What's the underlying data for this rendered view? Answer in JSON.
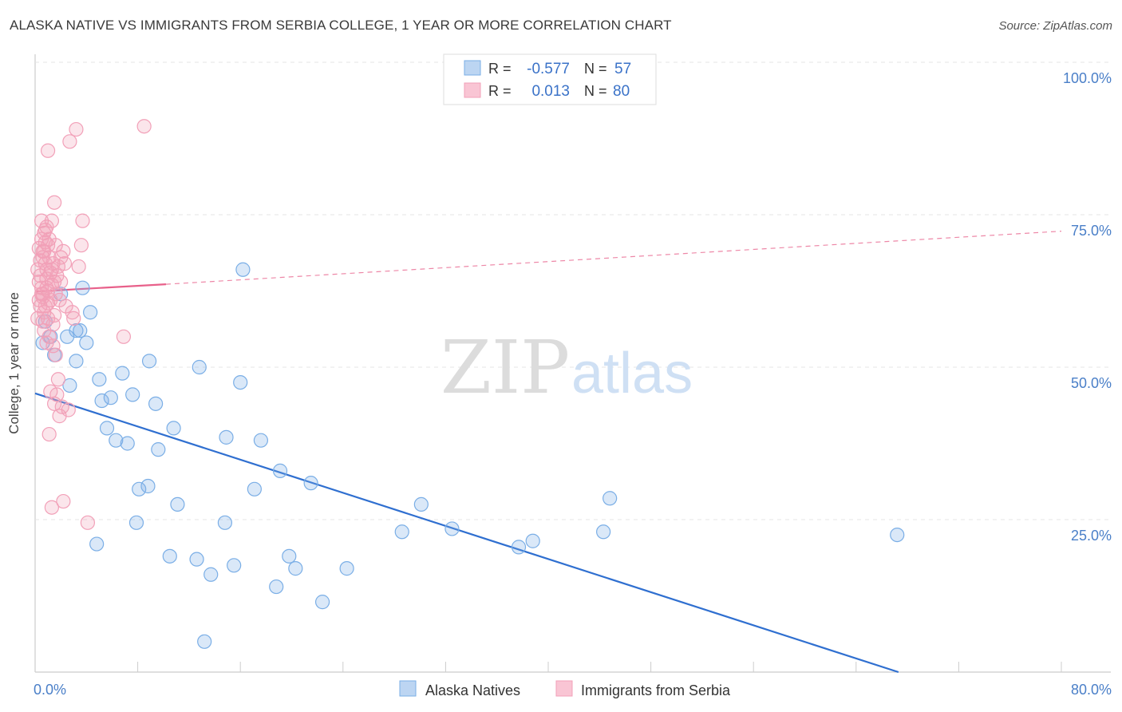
{
  "title": "ALASKA NATIVE VS IMMIGRANTS FROM SERBIA COLLEGE, 1 YEAR OR MORE CORRELATION CHART",
  "source": "Source: ZipAtlas.com",
  "watermark": {
    "zip": "ZIP",
    "atlas": "atlas"
  },
  "chart_data": {
    "type": "scatter",
    "ylabel": "College, 1 year or more",
    "xlabel": "",
    "xlim": [
      0,
      80
    ],
    "ylim": [
      0,
      100
    ],
    "x_tick_labels": [
      "0.0%",
      "80.0%"
    ],
    "y_ticks": [
      {
        "value": 100,
        "label": "100.0%"
      },
      {
        "value": 75,
        "label": "75.0%"
      },
      {
        "value": 50,
        "label": "50.0%"
      },
      {
        "value": 25,
        "label": "25.0%"
      }
    ],
    "legend_stats": [
      {
        "r_label": "R =",
        "r_value": "-0.577",
        "n_label": "N =",
        "n_value": "57"
      },
      {
        "r_label": "R =",
        "r_value": "0.013",
        "n_label": "N =",
        "n_value": "80"
      }
    ],
    "series": [
      {
        "name": "Alaska Natives",
        "color": "#7aaee6",
        "line_color": "#2f6fd0",
        "trend": {
          "x0": 0,
          "y0": 45.7,
          "x1": 67.3,
          "y1": 0,
          "dashed_to": null
        },
        "points": [
          [
            0.8,
            57.5
          ],
          [
            1.2,
            55
          ],
          [
            1.5,
            52
          ],
          [
            2.0,
            62
          ],
          [
            2.5,
            55
          ],
          [
            2.7,
            47
          ],
          [
            3.2,
            56
          ],
          [
            3.5,
            56
          ],
          [
            3.2,
            51
          ],
          [
            4.0,
            54
          ],
          [
            3.7,
            63
          ],
          [
            4.3,
            59
          ],
          [
            5.0,
            48
          ],
          [
            4.8,
            21
          ],
          [
            5.2,
            44.5
          ],
          [
            5.9,
            45
          ],
          [
            5.6,
            40
          ],
          [
            6.3,
            38
          ],
          [
            6.8,
            49
          ],
          [
            7.2,
            37.5
          ],
          [
            7.6,
            45.5
          ],
          [
            7.9,
            24.5
          ],
          [
            8.1,
            30
          ],
          [
            8.8,
            30.5
          ],
          [
            8.9,
            51
          ],
          [
            9.4,
            44
          ],
          [
            9.6,
            36.5
          ],
          [
            10.5,
            19
          ],
          [
            10.8,
            40
          ],
          [
            11.1,
            27.5
          ],
          [
            12.6,
            18.5
          ],
          [
            12.8,
            50
          ],
          [
            13.2,
            5
          ],
          [
            13.7,
            16
          ],
          [
            14.8,
            24.5
          ],
          [
            14.9,
            38.5
          ],
          [
            15.5,
            17.5
          ],
          [
            16.2,
            66
          ],
          [
            16.0,
            47.5
          ],
          [
            17.1,
            30
          ],
          [
            17.6,
            38
          ],
          [
            18.8,
            14
          ],
          [
            19.1,
            33
          ],
          [
            19.8,
            19
          ],
          [
            20.3,
            17
          ],
          [
            21.5,
            31
          ],
          [
            22.4,
            11.5
          ],
          [
            24.3,
            17
          ],
          [
            28.6,
            23
          ],
          [
            30.1,
            27.5
          ],
          [
            32.5,
            23.5
          ],
          [
            37.7,
            20.5
          ],
          [
            38.8,
            21.5
          ],
          [
            44.3,
            23
          ],
          [
            44.8,
            28.5
          ],
          [
            67.2,
            22.5
          ],
          [
            0.6,
            54
          ]
        ]
      },
      {
        "name": "Immigrants from Serbia",
        "color": "#f2a0b8",
        "line_color": "#e8608a",
        "trend": {
          "x0": 0,
          "y0": 62.4,
          "x1": 10.2,
          "y1": 63.6,
          "dashed_to": [
            80,
            72.3
          ]
        },
        "points": [
          [
            0.5,
            74
          ],
          [
            0.7,
            72
          ],
          [
            0.9,
            73
          ],
          [
            1.0,
            70
          ],
          [
            0.6,
            69
          ],
          [
            1.1,
            68
          ],
          [
            0.8,
            67
          ],
          [
            1.3,
            66
          ],
          [
            0.4,
            65
          ],
          [
            1.5,
            64
          ],
          [
            0.9,
            63
          ],
          [
            0.6,
            62
          ],
          [
            1.2,
            61
          ],
          [
            0.8,
            60
          ],
          [
            1.0,
            58
          ],
          [
            1.4,
            57
          ],
          [
            0.7,
            56
          ],
          [
            1.1,
            55
          ],
          [
            0.9,
            54
          ],
          [
            1.6,
            52
          ],
          [
            1.2,
            46
          ],
          [
            1.5,
            44
          ],
          [
            1.9,
            42
          ],
          [
            1.1,
            39
          ],
          [
            1.3,
            27
          ],
          [
            2.2,
            28
          ],
          [
            4.1,
            24.5
          ],
          [
            1.5,
            77
          ],
          [
            1.0,
            85.5
          ],
          [
            2.7,
            87
          ],
          [
            3.2,
            89
          ],
          [
            8.5,
            89.5
          ],
          [
            3.7,
            74
          ],
          [
            3.6,
            70
          ],
          [
            3.4,
            66.5
          ],
          [
            1.8,
            48
          ],
          [
            2.1,
            43.5
          ],
          [
            2.4,
            60
          ],
          [
            2.9,
            59
          ],
          [
            6.9,
            55
          ],
          [
            0.5,
            71
          ],
          [
            0.6,
            68
          ],
          [
            0.9,
            66
          ],
          [
            1.4,
            67
          ],
          [
            1.7,
            65
          ],
          [
            2.0,
            68
          ],
          [
            2.2,
            69
          ],
          [
            0.3,
            64
          ],
          [
            0.5,
            63
          ],
          [
            1.6,
            62
          ],
          [
            1.9,
            61
          ],
          [
            0.4,
            60
          ],
          [
            0.7,
            59
          ],
          [
            1.0,
            62.5
          ],
          [
            1.3,
            63.5
          ],
          [
            0.2,
            66
          ],
          [
            0.8,
            70.5
          ],
          [
            1.1,
            71
          ],
          [
            1.8,
            66.5
          ],
          [
            0.3,
            61
          ],
          [
            0.6,
            57.5
          ],
          [
            1.4,
            53.5
          ],
          [
            2.6,
            43
          ],
          [
            1.7,
            45.5
          ],
          [
            0.5,
            62
          ],
          [
            0.9,
            64.5
          ],
          [
            1.2,
            65.5
          ],
          [
            0.4,
            67.5
          ],
          [
            0.7,
            69
          ],
          [
            1.6,
            70
          ],
          [
            2.3,
            67
          ],
          [
            2.0,
            64
          ],
          [
            0.2,
            58
          ],
          [
            0.6,
            61.5
          ],
          [
            1.0,
            60.5
          ],
          [
            1.5,
            58.5
          ],
          [
            3.0,
            58
          ],
          [
            0.8,
            72.5
          ],
          [
            1.3,
            74
          ],
          [
            0.3,
            69.5
          ]
        ]
      }
    ]
  }
}
